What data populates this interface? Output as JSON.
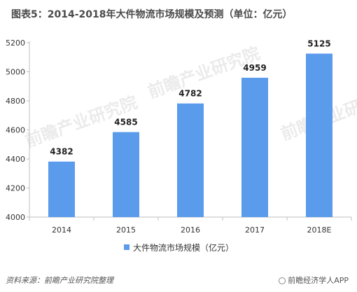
{
  "title": "图表5：2014-2018年大件物流市场规模及预测（单位：亿元）",
  "source": "资料来源：前瞻产业研究院整理",
  "watermark": "前瞻产业研究院",
  "brand": "前瞻经济学人APP",
  "colors": {
    "bar": "#5b9bec",
    "label": "#222222",
    "axis": "#bfbfbf"
  },
  "chart_data": {
    "type": "bar",
    "categories": [
      "2014",
      "2015",
      "2016",
      "2017",
      "2018E"
    ],
    "series": [
      {
        "name": "大件物流市场规模（亿元）",
        "values": [
          4382,
          4585,
          4782,
          4959,
          5125
        ]
      }
    ],
    "data_labels": [
      "4382",
      "4585",
      "4782",
      "4959",
      "5125"
    ],
    "ylim": [
      4000,
      5200
    ],
    "yticks": [
      4000,
      4200,
      4400,
      4600,
      4800,
      5000,
      5200
    ],
    "legend_position": "bottom",
    "grid": false
  }
}
